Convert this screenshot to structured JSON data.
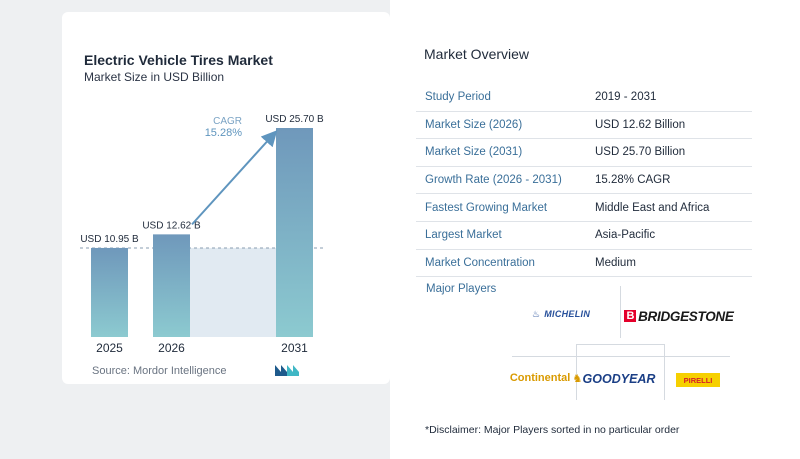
{
  "chart_data": {
    "type": "bar",
    "title": "Electric Vehicle Tires Market",
    "subtitle": "Market Size in USD Billion",
    "categories": [
      "2025",
      "2026",
      "2031"
    ],
    "values": [
      10.95,
      12.62,
      25.7
    ],
    "value_labels": [
      "USD 10.95 B",
      "USD 12.62 B",
      "USD 25.70 B"
    ],
    "cagr_label": "CAGR",
    "cagr_value": "15.28%",
    "ylim": [
      0,
      27
    ],
    "grid": false,
    "colors": {
      "bar_top": "#6f98bb",
      "bar_bottom": "#8ccad0",
      "shade": "#e1eaf2",
      "arrow": "#5f95be",
      "dashed": "#8a9db0"
    }
  },
  "source": "Source: Mordor Intelligence",
  "overview": {
    "title": "Market Overview",
    "rows": [
      {
        "key": "Study Period",
        "value": "2019 - 2031"
      },
      {
        "key": "Market Size (2026)",
        "value": "USD 12.62 Billion"
      },
      {
        "key": "Market Size (2031)",
        "value": "USD 25.70 Billion"
      },
      {
        "key": "Growth Rate (2026 - 2031)",
        "value": "15.28% CAGR"
      },
      {
        "key": "Fastest Growing Market",
        "value": "Middle East and Africa"
      },
      {
        "key": "Largest Market",
        "value": "Asia-Pacific"
      },
      {
        "key": "Market Concentration",
        "value": "Medium"
      }
    ]
  },
  "major_players": {
    "title": "Major Players",
    "logos": {
      "michelin": "MICHELIN",
      "bridgestone": "BRIDGESTONE",
      "continental": "Continental",
      "goodyear": "GOODYEAR",
      "pirelli": "PIRELLI"
    }
  },
  "disclaimer": "*Disclaimer: Major Players sorted in no particular order"
}
